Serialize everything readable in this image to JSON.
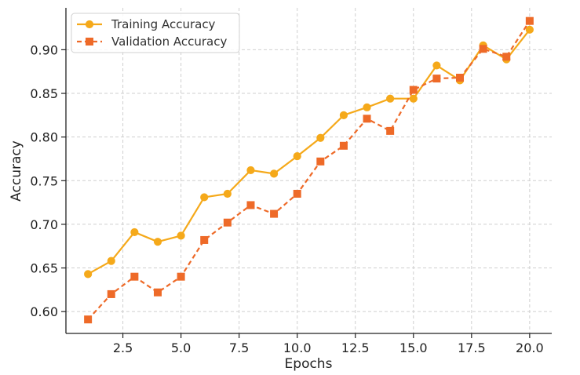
{
  "chart_data": {
    "type": "line",
    "xlabel": "Epochs",
    "ylabel": "Accuracy",
    "x": [
      1,
      2,
      3,
      4,
      5,
      6,
      7,
      8,
      9,
      10,
      11,
      12,
      13,
      14,
      15,
      16,
      17,
      18,
      19,
      20
    ],
    "xlim": [
      0.05,
      20.95
    ],
    "ylim": [
      0.575,
      0.948
    ],
    "xticks": [
      2.5,
      5.0,
      7.5,
      10.0,
      12.5,
      15.0,
      17.5,
      20.0
    ],
    "xtick_labels": [
      "2.5",
      "5.0",
      "7.5",
      "10.0",
      "12.5",
      "15.0",
      "17.5",
      "20.0"
    ],
    "yticks": [
      0.6,
      0.65,
      0.7,
      0.75,
      0.8,
      0.85,
      0.9
    ],
    "ytick_labels": [
      "0.60",
      "0.65",
      "0.70",
      "0.75",
      "0.80",
      "0.85",
      "0.90"
    ],
    "grid": true,
    "legend_position": "top-left",
    "series": [
      {
        "name": "Training Accuracy",
        "color": "#F5A91A",
        "marker": "circle",
        "line_style": "solid",
        "values": [
          0.643,
          0.658,
          0.691,
          0.68,
          0.687,
          0.731,
          0.735,
          0.762,
          0.758,
          0.778,
          0.799,
          0.825,
          0.834,
          0.844,
          0.844,
          0.882,
          0.865,
          0.905,
          0.889,
          0.923
        ]
      },
      {
        "name": "Validation Accuracy",
        "color": "#EE6A28",
        "marker": "square",
        "line_style": "dashed",
        "values": [
          0.591,
          0.62,
          0.64,
          0.622,
          0.64,
          0.682,
          0.702,
          0.722,
          0.712,
          0.735,
          0.772,
          0.79,
          0.821,
          0.807,
          0.854,
          0.867,
          0.868,
          0.901,
          0.892,
          0.933
        ]
      }
    ]
  }
}
